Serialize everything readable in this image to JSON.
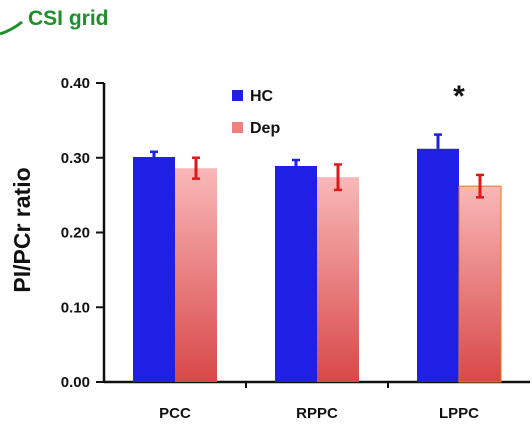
{
  "header": {
    "label": "CSI grid",
    "color": "#1f8f2a"
  },
  "chart_data": {
    "type": "bar",
    "categories": [
      "PCC",
      "RPPC",
      "LPPC"
    ],
    "ylabel": "PI/PCr ratio",
    "ylim": [
      0,
      0.4
    ],
    "yticks": [
      "0.00",
      "0.10",
      "0.20",
      "0.30",
      "0.40"
    ],
    "legend_position": "top-left",
    "grid": false,
    "series": [
      {
        "name": "HC",
        "color": "#1f1fe6",
        "values": [
          0.301,
          0.289,
          0.312
        ],
        "errors": [
          0.007,
          0.008,
          0.019
        ]
      },
      {
        "name": "Dep",
        "color": "#ee8a8a",
        "values": [
          0.286,
          0.274,
          0.262
        ],
        "errors": [
          0.014,
          0.017,
          0.015
        ]
      }
    ],
    "error_color": "#e01818",
    "annotations": [
      {
        "category": "LPPC",
        "text": "*"
      }
    ]
  }
}
